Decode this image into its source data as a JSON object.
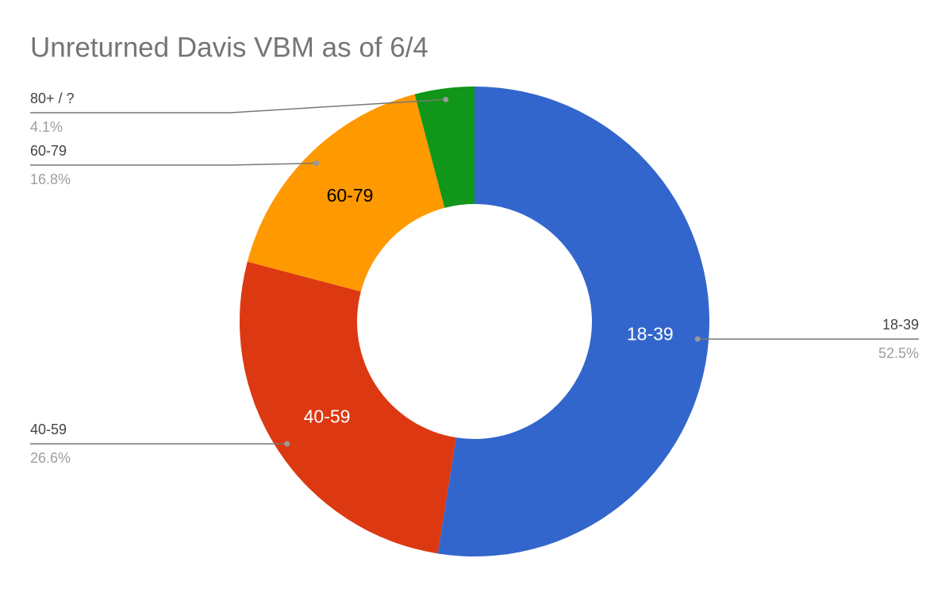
{
  "chart_data": {
    "type": "donut",
    "title": "Unreturned Davis VBM as of 6/4",
    "categories": [
      "18-39",
      "40-59",
      "60-79",
      "80+ / ?"
    ],
    "values": [
      52.5,
      26.6,
      16.8,
      4.1
    ],
    "value_labels": [
      "52.5%",
      "26.6%",
      "16.8%",
      "4.1%"
    ],
    "colors": [
      "#3366cc",
      "#dc3912",
      "#ff9900",
      "#109618"
    ]
  }
}
